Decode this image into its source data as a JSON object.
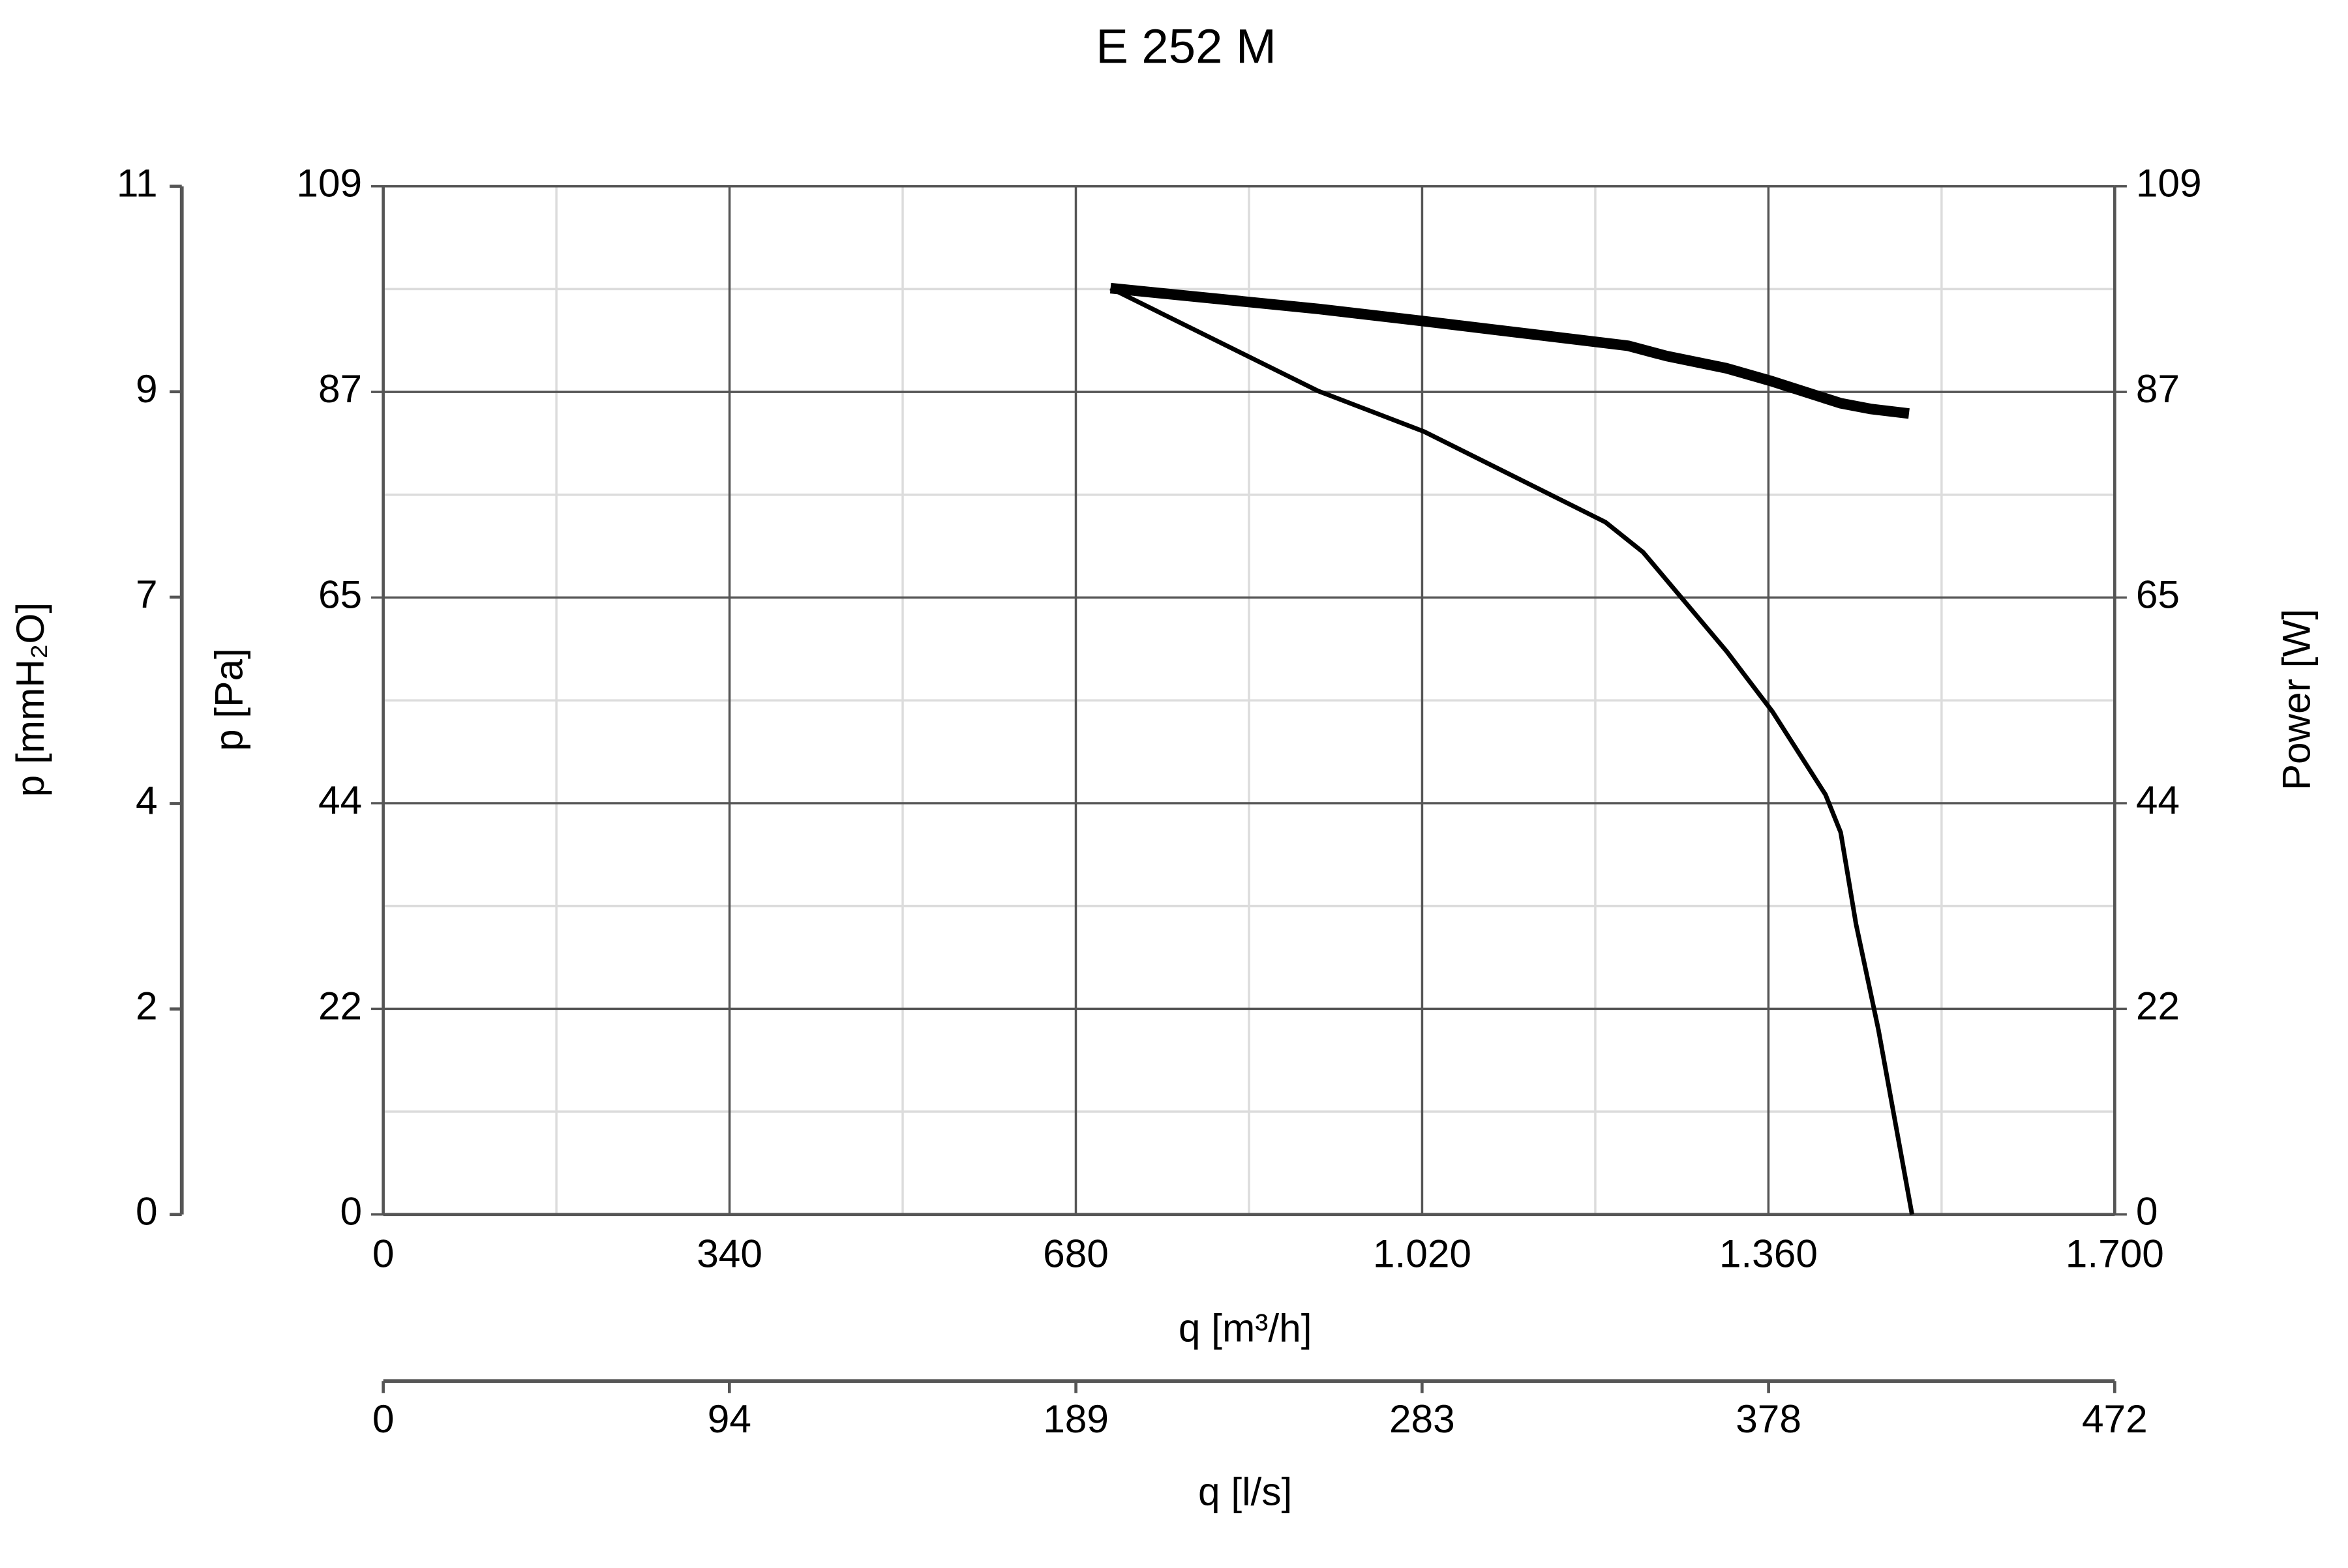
{
  "chart_data": {
    "type": "line",
    "title": "E 252 M",
    "x_label": "q [m³/h]",
    "y_label": "p [Pa]",
    "y2_label": "Power [W]",
    "xlim": [
      0,
      1700
    ],
    "xticks": [
      0,
      340,
      680,
      {
        "value": 1020,
        "label": "1.020"
      },
      {
        "value": 1360,
        "label": "1.360"
      },
      {
        "value": 1700,
        "label": "1.700"
      }
    ],
    "ylim": [
      0,
      109
    ],
    "yticks": [
      0,
      {
        "value": 21.8,
        "label": "22"
      },
      {
        "value": 43.6,
        "label": "44"
      },
      {
        "value": 65.4,
        "label": "65"
      },
      {
        "value": 87.2,
        "label": "87"
      },
      109
    ],
    "y2lim": [
      0,
      109
    ],
    "y2ticks": [
      0,
      {
        "value": 21.8,
        "label": "22"
      },
      {
        "value": 43.6,
        "label": "44"
      },
      {
        "value": 65.4,
        "label": "65"
      },
      {
        "value": 87.2,
        "label": "87"
      },
      109
    ],
    "pressure_mmH2O_axis": {
      "label": "p [mmH₂O]",
      "lim": [
        0,
        11.11
      ],
      "ticks": [
        0,
        {
          "value": 2.22,
          "label": "2"
        },
        {
          "value": 4.44,
          "label": "4"
        },
        {
          "value": 6.67,
          "label": "7"
        },
        {
          "value": 8.89,
          "label": "9"
        },
        {
          "value": 11.11,
          "label": "11"
        }
      ]
    },
    "flow_ls_axis": {
      "label": "q [l/s]",
      "lim": [
        0,
        472.2
      ],
      "ticks": [
        0,
        {
          "value": 94.4,
          "label": "94"
        },
        {
          "value": 188.9,
          "label": "189"
        },
        {
          "value": 283.3,
          "label": "283"
        },
        {
          "value": 377.8,
          "label": "378"
        },
        {
          "value": 472.2,
          "label": "472"
        }
      ]
    },
    "grid": true,
    "minor_grid": true,
    "series": [
      {
        "color": "#000000",
        "line_width": 3,
        "x": [
          714,
          918,
          1022,
          1200,
          1237,
          1319,
          1364,
          1416,
          1431,
          1446,
          1468,
          1501
        ],
        "values": [
          98.2,
          87.3,
          83.0,
          73.4,
          70.2,
          59.7,
          53.3,
          44.5,
          40.5,
          30.8,
          19.6,
          0
        ]
      },
      {
        "color": "#000000",
        "line_width": 7,
        "axis": "y2",
        "x": [
          714,
          918,
          1022,
          1222,
          1260,
          1319,
          1364,
          1431,
          1460,
          1498
        ],
        "values": [
          98.2,
          96.0,
          94.7,
          92.1,
          91.0,
          89.7,
          88.3,
          86.0,
          85.4,
          84.9
        ]
      }
    ]
  }
}
